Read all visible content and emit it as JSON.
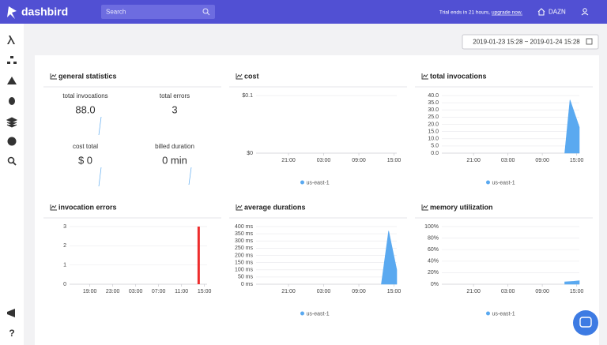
{
  "header": {
    "logo": "dashbird",
    "search_placeholder": "Search",
    "trial_text": "Trial ends in 21 hours,",
    "upgrade_link": "upgrade now.",
    "account": "DAZN"
  },
  "date_range": "2019-01-23 15:28 ~ 2019-01-24 15:28",
  "panels": [
    {
      "title": "general statistics",
      "stats": [
        {
          "label": "total invocations",
          "value": "88.0"
        },
        {
          "label": "total errors",
          "value": "3"
        },
        {
          "label": "cost total",
          "value": "$ 0"
        },
        {
          "label": "billed duration",
          "value": "0 min"
        }
      ]
    },
    {
      "title": "cost",
      "chart_data": {
        "type": "area",
        "xlim": [
          "2019-01-23 15:28",
          "2019-01-24 15:28"
        ],
        "xticks": [
          {
            "value": "2019-01-23 21:00",
            "label": "21:00"
          },
          {
            "value": "2019-01-24 03:00",
            "label": "03:00"
          },
          {
            "value": "2019-01-24 09:00",
            "label": "09:00"
          },
          {
            "value": "2019-01-24 15:00",
            "label": "15:00"
          }
        ],
        "ylim": [
          0,
          0.1
        ],
        "yticks": [
          {
            "value": 0,
            "label": "$0"
          },
          {
            "value": 0.1,
            "label": "$0.1"
          }
        ],
        "grid": true,
        "series": [
          {
            "name": "us-east-1",
            "color": "#5aa9f0",
            "x": [],
            "values": []
          }
        ]
      }
    },
    {
      "title": "total invocations",
      "chart_data": {
        "type": "area",
        "xlim": [
          "2019-01-23 15:28",
          "2019-01-24 15:28"
        ],
        "xticks": [
          {
            "value": "2019-01-23 21:00",
            "label": "21:00"
          },
          {
            "value": "2019-01-24 03:00",
            "label": "03:00"
          },
          {
            "value": "2019-01-24 09:00",
            "label": "09:00"
          },
          {
            "value": "2019-01-24 15:00",
            "label": "15:00"
          }
        ],
        "ylim": [
          0,
          40
        ],
        "yticks": [
          {
            "value": 0,
            "label": "0.0"
          },
          {
            "value": 5,
            "label": "5.0"
          },
          {
            "value": 10,
            "label": "10.0"
          },
          {
            "value": 15,
            "label": "15.0"
          },
          {
            "value": 20,
            "label": "20.0"
          },
          {
            "value": 25,
            "label": "25.0"
          },
          {
            "value": 30,
            "label": "30.0"
          },
          {
            "value": 35,
            "label": "35.0"
          },
          {
            "value": 40,
            "label": "40.0"
          }
        ],
        "grid": true,
        "series": [
          {
            "name": "us-east-1",
            "color": "#5aa9f0",
            "x": [
              "2019-01-24 12:55",
              "2019-01-24 13:50",
              "2019-01-24 15:28"
            ],
            "values": [
              0,
              37,
              18
            ]
          }
        ]
      }
    },
    {
      "title": "invocation errors",
      "chart_data": {
        "type": "bar",
        "xlim": [
          "2019-01-23 15:28",
          "2019-01-24 15:28"
        ],
        "xticks": [
          {
            "value": "2019-01-23 19:00",
            "label": "19:00"
          },
          {
            "value": "2019-01-23 23:00",
            "label": "23:00"
          },
          {
            "value": "2019-01-24 03:00",
            "label": "03:00"
          },
          {
            "value": "2019-01-24 07:00",
            "label": "07:00"
          },
          {
            "value": "2019-01-24 11:00",
            "label": "11:00"
          },
          {
            "value": "2019-01-24 15:00",
            "label": "15:00"
          }
        ],
        "ylim": [
          0,
          3
        ],
        "yticks": [
          0,
          1,
          2,
          3
        ],
        "grid": true,
        "series": [
          {
            "color": "#ee2c2c",
            "x": [
              "2019-01-24 14:00"
            ],
            "values": [
              3
            ]
          }
        ]
      }
    },
    {
      "title": "average durations",
      "chart_data": {
        "type": "area",
        "xlim": [
          "2019-01-23 15:28",
          "2019-01-24 15:28"
        ],
        "xticks": [
          {
            "value": "2019-01-23 21:00",
            "label": "21:00"
          },
          {
            "value": "2019-01-24 03:00",
            "label": "03:00"
          },
          {
            "value": "2019-01-24 09:00",
            "label": "09:00"
          },
          {
            "value": "2019-01-24 15:00",
            "label": "15:00"
          }
        ],
        "ylim": [
          0,
          400
        ],
        "yticks": [
          {
            "value": 0,
            "label": "0 ms"
          },
          {
            "value": 50,
            "label": "50 ms"
          },
          {
            "value": 100,
            "label": "100 ms"
          },
          {
            "value": 150,
            "label": "150 ms"
          },
          {
            "value": 200,
            "label": "200 ms"
          },
          {
            "value": 250,
            "label": "250 ms"
          },
          {
            "value": 300,
            "label": "300 ms"
          },
          {
            "value": 350,
            "label": "350 ms"
          },
          {
            "value": 400,
            "label": "400 ms"
          }
        ],
        "grid": true,
        "series": [
          {
            "name": "us-east-1",
            "color": "#5aa9f0",
            "x": [
              "2019-01-24 12:50",
              "2019-01-24 14:05",
              "2019-01-24 15:28"
            ],
            "values": [
              0,
              370,
              100
            ]
          }
        ]
      }
    },
    {
      "title": "memory utilization",
      "chart_data": {
        "type": "area",
        "xlim": [
          "2019-01-23 15:28",
          "2019-01-24 15:28"
        ],
        "xticks": [
          {
            "value": "2019-01-23 21:00",
            "label": "21:00"
          },
          {
            "value": "2019-01-24 03:00",
            "label": "03:00"
          },
          {
            "value": "2019-01-24 09:00",
            "label": "09:00"
          },
          {
            "value": "2019-01-24 15:00",
            "label": "15:00"
          }
        ],
        "ylim": [
          0,
          100
        ],
        "yticks": [
          {
            "value": 0,
            "label": "0%"
          },
          {
            "value": 20,
            "label": "20%"
          },
          {
            "value": 40,
            "label": "40%"
          },
          {
            "value": 60,
            "label": "60%"
          },
          {
            "value": 80,
            "label": "80%"
          },
          {
            "value": 100,
            "label": "100%"
          }
        ],
        "grid": true,
        "series": [
          {
            "name": "us-east-1",
            "color": "#5aa9f0",
            "x": [
              "2019-01-24 12:55",
              "2019-01-24 14:30",
              "2019-01-24 15:28"
            ],
            "values": [
              4,
              5,
              6
            ]
          }
        ]
      }
    }
  ]
}
